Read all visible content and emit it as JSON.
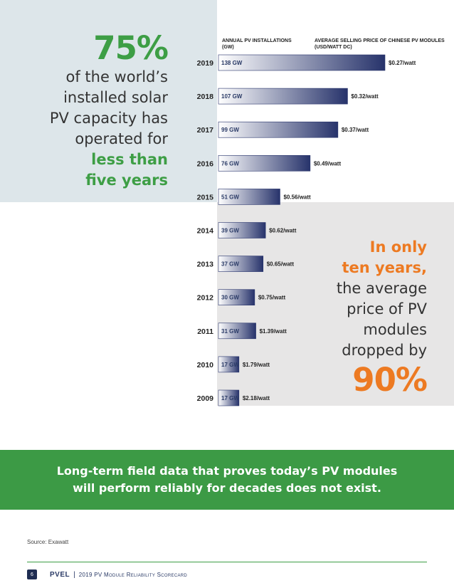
{
  "left_stat": {
    "percent": "75%",
    "lines": [
      "of the world’s",
      "installed solar",
      "PV capacity has",
      "operated for"
    ],
    "highlight": [
      "less than",
      "five years"
    ]
  },
  "right_stat": {
    "highlight": [
      "In only",
      "ten years,"
    ],
    "lines": [
      "the average",
      "price of PV",
      "modules",
      "dropped by"
    ],
    "percent": "90%"
  },
  "headers": {
    "installations": "ANNUAL PV INSTALLATIONS\n(GW)",
    "price": "AVERAGE SELLING PRICE OF CHINESE PV MODULES\n(USD/WATT DC)"
  },
  "chart_data": {
    "type": "bar",
    "orientation": "horizontal",
    "categories": [
      "2019",
      "2018",
      "2017",
      "2016",
      "2015",
      "2014",
      "2013",
      "2012",
      "2011",
      "2010",
      "2009"
    ],
    "series": [
      {
        "values": [
          138,
          107,
          99,
          76,
          51,
          39,
          37,
          30,
          31,
          17,
          17
        ],
        "labels": [
          "138 GW",
          "107 GW",
          "99 GW",
          "76 GW",
          "51 GW",
          "39 GW",
          "37 GW",
          "30 GW",
          "31 GW",
          "17 GW",
          "17 GW"
        ]
      },
      {
        "values": [
          0.27,
          0.32,
          0.37,
          0.49,
          0.56,
          0.62,
          0.65,
          0.75,
          1.39,
          1.79,
          2.18
        ],
        "labels": [
          "$0.27/watt",
          "$0.32/watt",
          "$0.37/watt",
          "$0.49/watt",
          "$0.56/watt",
          "$0.62/watt",
          "$0.65/watt",
          "$0.75/watt",
          "$1.39/watt",
          "$1.79/watt",
          "$2.18/watt"
        ]
      }
    ],
    "bar_gradient": [
      "#ffffff",
      "#27336b"
    ]
  },
  "banner": {
    "lines": [
      "Long-term field data that proves today’s PV modules",
      "will perform reliably for decades does not exist."
    ]
  },
  "source": "Source: Exawatt",
  "footer": {
    "page": "6",
    "logo": "PVEL",
    "separator": "|",
    "title": "2019 PV Module Reliability Scorecard"
  },
  "colors": {
    "green": "#3d9e45",
    "orange": "#ed7a22",
    "navy": "#27336b",
    "panel_left": "#dde6ea",
    "panel_right": "#e7e6e6"
  }
}
